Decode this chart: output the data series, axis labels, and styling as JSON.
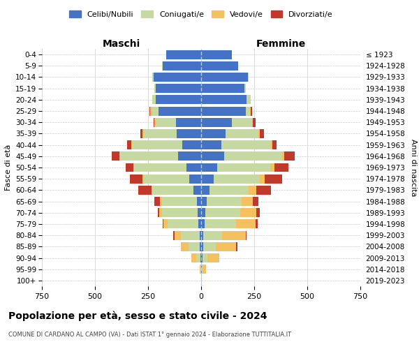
{
  "age_groups": [
    "0-4",
    "5-9",
    "10-14",
    "15-19",
    "20-24",
    "25-29",
    "30-34",
    "35-39",
    "40-44",
    "45-49",
    "50-54",
    "55-59",
    "60-64",
    "65-69",
    "70-74",
    "75-79",
    "80-84",
    "85-89",
    "90-94",
    "95-99",
    "100+"
  ],
  "birth_years": [
    "2019-2023",
    "2014-2018",
    "2009-2013",
    "2004-2008",
    "1999-2003",
    "1994-1998",
    "1989-1993",
    "1984-1988",
    "1979-1983",
    "1974-1978",
    "1969-1973",
    "1964-1968",
    "1959-1963",
    "1954-1958",
    "1949-1953",
    "1944-1948",
    "1939-1943",
    "1934-1938",
    "1929-1933",
    "1924-1928",
    "≤ 1923"
  ],
  "maschi": {
    "celibi": [
      165,
      180,
      225,
      215,
      215,
      200,
      120,
      115,
      90,
      110,
      70,
      55,
      35,
      20,
      18,
      12,
      6,
      5,
      2,
      1,
      0
    ],
    "coniugati": [
      0,
      5,
      5,
      5,
      15,
      30,
      95,
      155,
      235,
      270,
      245,
      215,
      195,
      165,
      165,
      145,
      90,
      55,
      20,
      3,
      1
    ],
    "vedovi": [
      0,
      0,
      0,
      0,
      0,
      10,
      5,
      5,
      5,
      5,
      5,
      5,
      5,
      10,
      15,
      20,
      30,
      35,
      25,
      2,
      0
    ],
    "divorziati": [
      0,
      0,
      0,
      0,
      0,
      5,
      5,
      10,
      20,
      35,
      35,
      60,
      60,
      25,
      5,
      5,
      5,
      0,
      0,
      0,
      0
    ]
  },
  "femmine": {
    "nubili": [
      145,
      175,
      220,
      205,
      215,
      210,
      145,
      115,
      95,
      110,
      75,
      60,
      40,
      25,
      20,
      15,
      10,
      10,
      5,
      2,
      0
    ],
    "coniugate": [
      0,
      0,
      5,
      5,
      20,
      20,
      95,
      155,
      235,
      270,
      250,
      215,
      185,
      165,
      165,
      150,
      90,
      60,
      25,
      5,
      1
    ],
    "vedove": [
      0,
      0,
      0,
      0,
      0,
      5,
      5,
      5,
      5,
      10,
      20,
      25,
      35,
      55,
      75,
      90,
      110,
      95,
      55,
      15,
      1
    ],
    "divorziate": [
      0,
      0,
      0,
      0,
      0,
      5,
      10,
      20,
      20,
      50,
      65,
      80,
      70,
      25,
      15,
      10,
      5,
      5,
      0,
      0,
      0
    ]
  },
  "colors": {
    "celibi": "#4472c4",
    "coniugati": "#c5d9a0",
    "vedovi": "#f4c060",
    "divorziati": "#c0392b"
  },
  "xlim": 750,
  "title": "Popolazione per età, sesso e stato civile - 2024",
  "subtitle": "COMUNE DI CARDANO AL CAMPO (VA) - Dati ISTAT 1° gennaio 2024 - Elaborazione TUTTITALIA.IT",
  "xlabel_left": "Maschi",
  "xlabel_right": "Femmine",
  "ylabel": "Fasce di età",
  "ylabel_right": "Anni di nascita",
  "background_color": "#ffffff"
}
